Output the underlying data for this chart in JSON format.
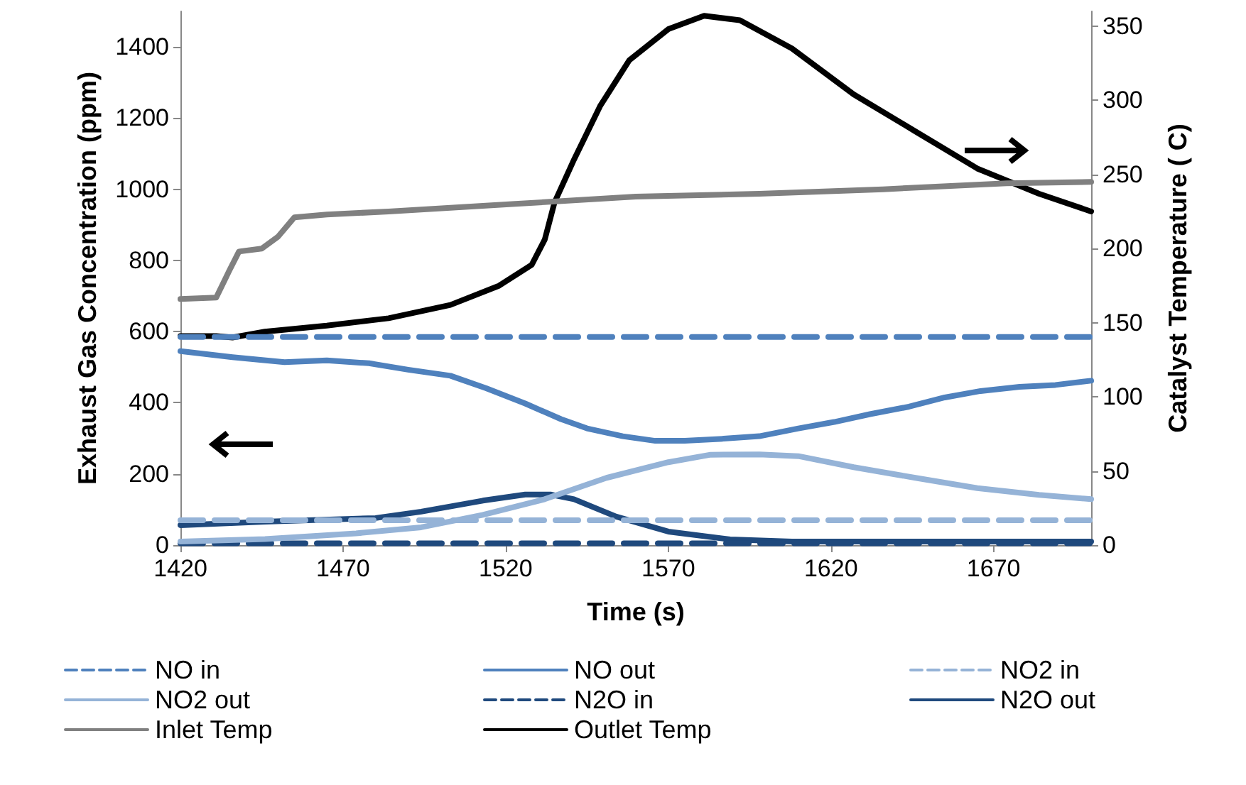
{
  "chart_data": {
    "type": "line",
    "xlabel": "Time (s)",
    "ylabel": "Exhaust Gas Concentration (ppm)",
    "y2label": "Catalyst Temperature ( C)",
    "xlim": [
      1420,
      1700
    ],
    "xticks": [
      1420,
      1470,
      1520,
      1570,
      1620,
      1670
    ],
    "ylim": [
      0,
      1500
    ],
    "yticks": [
      0,
      200,
      400,
      600,
      800,
      1000,
      1200,
      1400
    ],
    "y2lim": [
      0,
      360
    ],
    "y2ticks": [
      0,
      50,
      100,
      150,
      200,
      250,
      300,
      350
    ],
    "grid": false,
    "legend": "bottom",
    "marker": "none",
    "series": [
      {
        "name": "NO in",
        "color": "#4f81bd",
        "line_style": "dashed",
        "x": [
          1420,
          1700
        ],
        "values": [
          585,
          585
        ]
      },
      {
        "name": "NO out",
        "color": "#4f81bd",
        "line_style": "solid",
        "x": [
          1420,
          1436,
          1452,
          1465,
          1478,
          1490,
          1503,
          1514,
          1526,
          1537,
          1545,
          1556,
          1566,
          1575,
          1587,
          1598,
          1610,
          1621,
          1632,
          1644,
          1655,
          1666,
          1678,
          1689,
          1700
        ],
        "values": [
          545,
          528,
          514,
          519,
          511,
          493,
          476,
          441,
          398,
          354,
          328,
          306,
          293,
          293,
          299,
          306,
          328,
          346,
          368,
          389,
          415,
          433,
          445,
          450,
          462
        ]
      },
      {
        "name": "NO2 in",
        "color": "#95b3d7",
        "line_style": "dashed",
        "x": [
          1420,
          1700
        ],
        "values": [
          70,
          70
        ]
      },
      {
        "name": "NO2 out",
        "color": "#95b3d7",
        "line_style": "solid",
        "x": [
          1420,
          1446,
          1474,
          1494,
          1513,
          1532,
          1551,
          1570,
          1583,
          1598,
          1610,
          1627,
          1646,
          1665,
          1684,
          1700
        ],
        "values": [
          10,
          17,
          33,
          50,
          85,
          129,
          189,
          233,
          254,
          255,
          250,
          219,
          189,
          160,
          141,
          129
        ]
      },
      {
        "name": "N2O in",
        "color": "#1f497d",
        "line_style": "dashed",
        "x": [
          1420,
          1700
        ],
        "values": [
          5,
          5
        ]
      },
      {
        "name": "N2O out",
        "color": "#1f497d",
        "line_style": "solid",
        "x": [
          1420,
          1446,
          1480,
          1494,
          1513,
          1526,
          1534,
          1541,
          1554,
          1570,
          1589,
          1608,
          1700
        ],
        "values": [
          56,
          66,
          76,
          94,
          125,
          142,
          142,
          129,
          80,
          38,
          16,
          10,
          10
        ]
      },
      {
        "name": "Inlet Temp",
        "color": "#808080",
        "line_style": "solid",
        "axis": "y2",
        "x": [
          1420,
          1431,
          1435,
          1438,
          1445,
          1450,
          1455,
          1465,
          1484,
          1522,
          1560,
          1598,
          1636,
          1674,
          1700
        ],
        "values": [
          166,
          167,
          185,
          198,
          200,
          208,
          221,
          223,
          225,
          230,
          235,
          237,
          240,
          244,
          245
        ]
      },
      {
        "name": "Outlet Temp",
        "color": "#000000",
        "line_style": "solid",
        "axis": "y2",
        "x": [
          1420,
          1431,
          1436,
          1446,
          1465,
          1484,
          1503,
          1518,
          1528,
          1532,
          1535,
          1541,
          1549,
          1558,
          1570,
          1581,
          1592,
          1608,
          1627,
          1646,
          1665,
          1684,
          1700
        ],
        "values": [
          141,
          141,
          140,
          144,
          148,
          153,
          162,
          175,
          189,
          206,
          231,
          260,
          296,
          327,
          348,
          357,
          354,
          335,
          304,
          279,
          254,
          237,
          225
        ]
      }
    ]
  }
}
